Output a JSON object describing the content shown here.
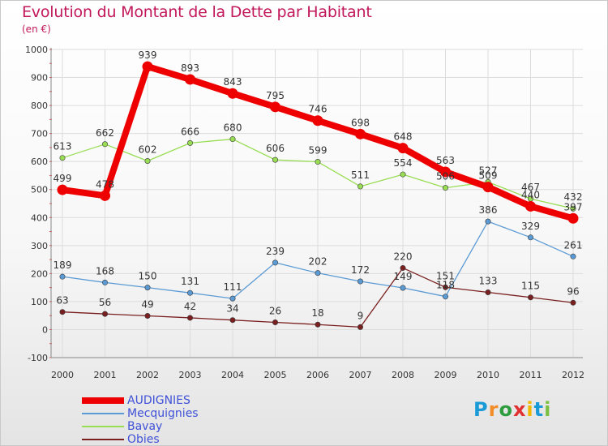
{
  "chart_data": {
    "type": "line",
    "title": "Evolution du Montant de la Dette par Habitant",
    "subtitle": "(en €)",
    "x": [
      "2000",
      "2001",
      "2002",
      "2003",
      "2004",
      "2005",
      "2006",
      "2007",
      "2008",
      "2009",
      "2010",
      "2011",
      "2012"
    ],
    "ylim": [
      -100,
      1000
    ],
    "yticks": [
      "-100",
      "0",
      "100",
      "200",
      "300",
      "400",
      "500",
      "600",
      "700",
      "800",
      "900",
      "1000"
    ],
    "grid": true,
    "legend_position": "bottom-left",
    "series": [
      {
        "name": "AUDIGNIES",
        "color": "#ee0000",
        "emphasis": true,
        "values": [
          499,
          478,
          939,
          893,
          843,
          795,
          746,
          698,
          648,
          563,
          509,
          440,
          397
        ],
        "labels": [
          "499",
          "478",
          "939",
          "893",
          "843",
          "795",
          "746",
          "698",
          "648",
          "563",
          "509",
          "440",
          "397"
        ]
      },
      {
        "name": "Mecquignies",
        "color": "#5b9bd5",
        "values": [
          189,
          168,
          150,
          131,
          111,
          239,
          202,
          172,
          149,
          118,
          386,
          329,
          261
        ],
        "labels": [
          "189",
          "168",
          "150",
          "131",
          "111",
          "239",
          "202",
          "172",
          "149",
          "118",
          "386",
          "329",
          "261"
        ]
      },
      {
        "name": "Bavay",
        "color": "#99dd55",
        "values": [
          613,
          662,
          602,
          666,
          680,
          606,
          599,
          511,
          554,
          506,
          527,
          467,
          432
        ],
        "labels": [
          "613",
          "662",
          "602",
          "666",
          "680",
          "606",
          "599",
          "511",
          "554",
          "506",
          "527",
          "467",
          "432"
        ]
      },
      {
        "name": "Obies",
        "color": "#7a1f1f",
        "values": [
          63,
          56,
          49,
          42,
          34,
          26,
          18,
          9,
          220,
          151,
          133,
          115,
          96
        ],
        "labels": [
          "63",
          "56",
          "49",
          "42",
          "34",
          "26",
          "18",
          "9",
          "220",
          "151",
          "133",
          "115",
          "96"
        ]
      }
    ]
  },
  "logo": {
    "text": "Proxiti",
    "colors": [
      "#1a9bd7",
      "#f28c28",
      "#2e9d3e",
      "#e03030",
      "#f2b800",
      "#1a9bd7",
      "#7bc043"
    ]
  }
}
